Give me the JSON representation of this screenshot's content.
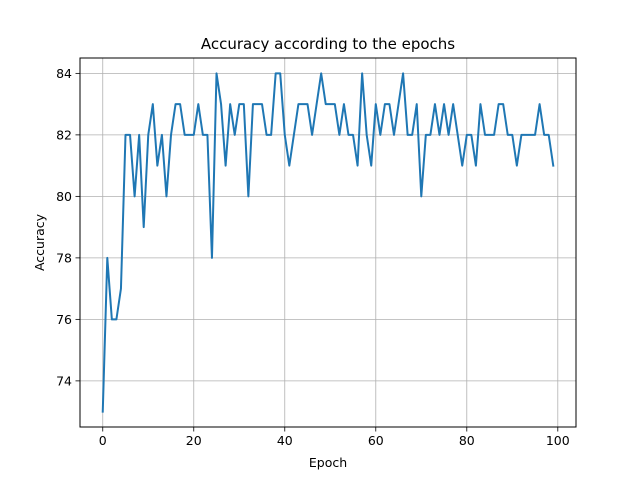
{
  "chart_data": {
    "type": "line",
    "title": "Accuracy according to the epochs",
    "xlabel": "Epoch",
    "ylabel": "Accuracy",
    "xlim": [
      -5,
      104
    ],
    "ylim": [
      72.5,
      84.5
    ],
    "xticks": [
      0,
      20,
      40,
      60,
      80,
      100
    ],
    "yticks": [
      74,
      76,
      78,
      80,
      82,
      84
    ],
    "grid": true,
    "line_color": "#1f77b4",
    "series": [
      {
        "x": [
          0,
          1,
          2,
          3,
          4,
          5,
          6,
          7,
          8,
          9,
          10,
          11,
          12,
          13,
          14,
          15,
          16,
          17,
          18,
          19,
          20,
          21,
          22,
          23,
          24,
          25,
          26,
          27,
          28,
          29,
          30,
          31,
          32,
          33,
          34,
          35,
          36,
          37,
          38,
          39,
          40,
          41,
          42,
          43,
          44,
          45,
          46,
          47,
          48,
          49,
          50,
          51,
          52,
          53,
          54,
          55,
          56,
          57,
          58,
          59,
          60,
          61,
          62,
          63,
          64,
          65,
          66,
          67,
          68,
          69,
          70,
          71,
          72,
          73,
          74,
          75,
          76,
          77,
          78,
          79,
          80,
          81,
          82,
          83,
          84,
          85,
          86,
          87,
          88,
          89,
          90,
          91,
          92,
          93,
          94,
          95,
          96,
          97,
          98,
          99
        ],
        "values": [
          73,
          78,
          76,
          76,
          77,
          82,
          82,
          80,
          82,
          79,
          82,
          83,
          81,
          82,
          80,
          82,
          83,
          83,
          82,
          82,
          82,
          83,
          82,
          82,
          78,
          84,
          83,
          81,
          83,
          82,
          83,
          83,
          80,
          83,
          83,
          83,
          82,
          82,
          84,
          84,
          82,
          81,
          82,
          83,
          83,
          83,
          82,
          83,
          84,
          83,
          83,
          83,
          82,
          83,
          82,
          82,
          81,
          84,
          82,
          81,
          83,
          82,
          83,
          83,
          82,
          83,
          84,
          82,
          82,
          83,
          80,
          82,
          82,
          83,
          82,
          83,
          82,
          83,
          82,
          81,
          82,
          82,
          81,
          83,
          82,
          82,
          82,
          83,
          83,
          82,
          82,
          81,
          82,
          82,
          82,
          82,
          83,
          82,
          82,
          81
        ]
      }
    ]
  }
}
